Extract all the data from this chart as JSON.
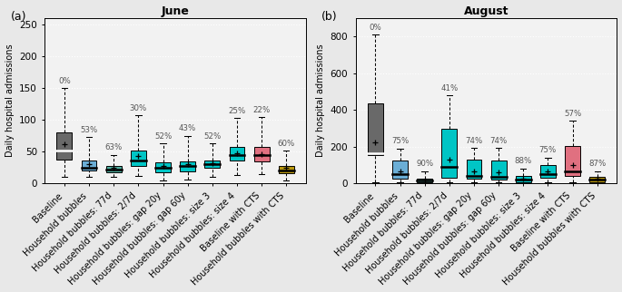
{
  "june": {
    "title": "June",
    "ylabel": "Daily hospital admissions",
    "ylim": [
      0,
      260
    ],
    "yticks": [
      0,
      50,
      100,
      150,
      200,
      250
    ],
    "categories": [
      "Baseline",
      "Household bubbles",
      "Household bubbles: 77d",
      "Household bubbles: 2/7d",
      "Household bubbles: gap 20y",
      "Household bubbles: gap 60y",
      "Household bubbles: size 3",
      "Household bubbles: size 4",
      "Baseline with CTS",
      "Household bubbles with CTS"
    ],
    "percentages": [
      "0%",
      "53%",
      "63%",
      "30%",
      "52%",
      "43%",
      "52%",
      "25%",
      "22%",
      "60%"
    ],
    "colors": [
      "#696969",
      "#6baed6",
      "#4dac9c",
      "#00c5c5",
      "#00c5c5",
      "#00c5c5",
      "#00c5c5",
      "#00c5c5",
      "#e07080",
      "#b8960c"
    ],
    "boxes": [
      {
        "q1": 37,
        "median": 51,
        "q3": 80,
        "whislo": 10,
        "whishi": 150,
        "mean": 62
      },
      {
        "q1": 20,
        "median": 24,
        "q3": 36,
        "whislo": 10,
        "whishi": 73,
        "mean": 30
      },
      {
        "q1": 18,
        "median": 22,
        "q3": 27,
        "whislo": 10,
        "whishi": 45,
        "mean": 24
      },
      {
        "q1": 28,
        "median": 36,
        "q3": 52,
        "whislo": 12,
        "whishi": 107,
        "mean": 43
      },
      {
        "q1": 18,
        "median": 24,
        "q3": 33,
        "whislo": 5,
        "whishi": 63,
        "mean": 28
      },
      {
        "q1": 19,
        "median": 27,
        "q3": 34,
        "whislo": 6,
        "whishi": 75,
        "mean": 30
      },
      {
        "q1": 24,
        "median": 30,
        "q3": 36,
        "whislo": 11,
        "whishi": 63,
        "mean": 32
      },
      {
        "q1": 36,
        "median": 44,
        "q3": 58,
        "whislo": 13,
        "whishi": 103,
        "mean": 47
      },
      {
        "q1": 34,
        "median": 44,
        "q3": 57,
        "whislo": 14,
        "whishi": 104,
        "mean": 46
      },
      {
        "q1": 16,
        "median": 21,
        "q3": 28,
        "whislo": 5,
        "whishi": 52,
        "mean": 24
      }
    ]
  },
  "august": {
    "title": "August",
    "ylabel": "Daily hospital admissions",
    "ylim": [
      0,
      900
    ],
    "yticks": [
      0,
      200,
      400,
      600,
      800
    ],
    "categories": [
      "Baseline",
      "Household bubbles",
      "Household bubbles: 77d",
      "Household bubbles: 2/7d",
      "Household bubbles: gap 20y",
      "Household bubbles: gap 60y",
      "Household bubbles: size 3",
      "Household bubbles: size 4",
      "Baseline with CTS",
      "Household bubbles with CTS"
    ],
    "percentages": [
      "0%",
      "75%",
      "90%",
      "41%",
      "74%",
      "74%",
      "88%",
      "75%",
      "57%",
      "87%"
    ],
    "colors": [
      "#696969",
      "#6baed6",
      "#4dac9c",
      "#00c5c5",
      "#00c5c5",
      "#00c5c5",
      "#00c5c5",
      "#00c5c5",
      "#e07080",
      "#b8960c"
    ],
    "boxes": [
      {
        "q1": 155,
        "median": 165,
        "q3": 435,
        "whislo": 8,
        "whishi": 810,
        "mean": 225
      },
      {
        "q1": 28,
        "median": 50,
        "q3": 125,
        "whislo": 5,
        "whishi": 190,
        "mean": 68
      },
      {
        "q1": 8,
        "median": 16,
        "q3": 26,
        "whislo": 2,
        "whishi": 68,
        "mean": 18
      },
      {
        "q1": 30,
        "median": 90,
        "q3": 295,
        "whislo": 8,
        "whishi": 480,
        "mean": 128
      },
      {
        "q1": 25,
        "median": 42,
        "q3": 130,
        "whislo": 4,
        "whishi": 192,
        "mean": 68
      },
      {
        "q1": 22,
        "median": 38,
        "q3": 125,
        "whislo": 5,
        "whishi": 192,
        "mean": 63
      },
      {
        "q1": 8,
        "median": 22,
        "q3": 43,
        "whislo": 2,
        "whishi": 82,
        "mean": 26
      },
      {
        "q1": 32,
        "median": 52,
        "q3": 102,
        "whislo": 6,
        "whishi": 142,
        "mean": 65
      },
      {
        "q1": 42,
        "median": 65,
        "q3": 205,
        "whislo": 8,
        "whishi": 340,
        "mean": 98
      },
      {
        "q1": 8,
        "median": 20,
        "q3": 36,
        "whislo": 2,
        "whishi": 68,
        "mean": 25
      }
    ]
  },
  "fig_bg": "#e8e8e8",
  "plot_bg": "#f2f2f2",
  "grid_color": "white",
  "label_fontsize": 7.0,
  "title_fontsize": 9,
  "tick_fontsize": 7.5,
  "percent_fontsize": 6.2
}
